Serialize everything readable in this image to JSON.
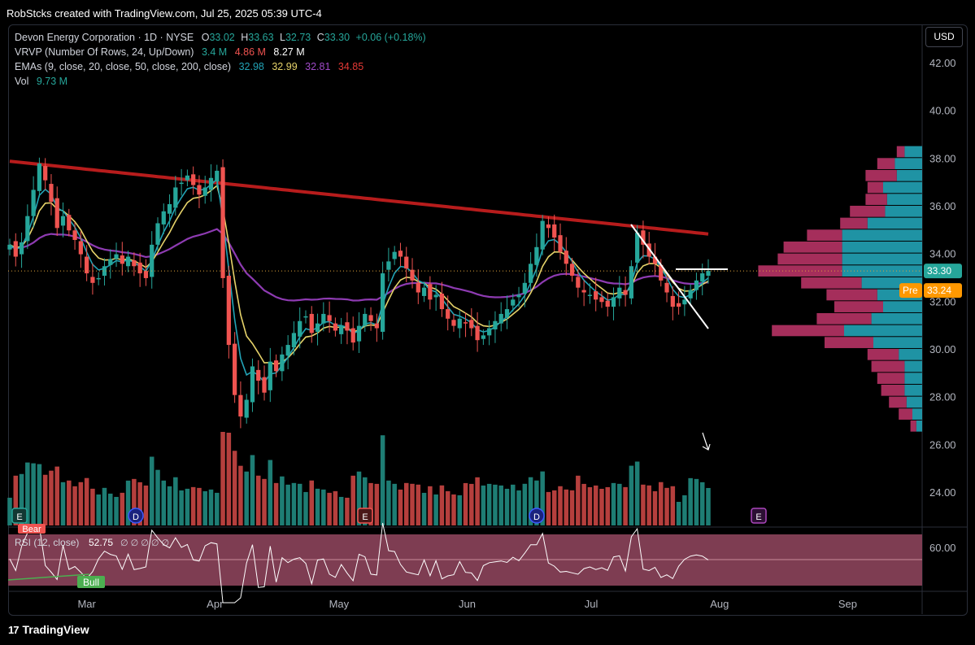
{
  "header": {
    "caption": "RobStcks created with TradingView.com, Jul 25, 2025 05:39 UTC-4"
  },
  "legend": {
    "symbol": "Devon Energy Corporation · 1D · NYSE",
    "open_label": "O",
    "open": "33.02",
    "high_label": "H",
    "high": "33.63",
    "low_label": "L",
    "low": "32.73",
    "close_label": "C",
    "close": "33.30",
    "change": "+0.06 (+0.18%)",
    "vrvp_label": "VRVP (Number Of Rows, 24, Up/Down)",
    "vrvp_up": "3.4 M",
    "vrvp_down": "4.86 M",
    "vrvp_total": "8.27 M",
    "ema_label": "EMAs (9, close, 20, close, 50, close, 200, close)",
    "ema9": "32.98",
    "ema20": "32.99",
    "ema50": "32.81",
    "ema200": "34.85",
    "vol_label": "Vol",
    "vol": "9.73 M"
  },
  "currency_button": "USD",
  "price_tags": {
    "last": "33.30",
    "pre_label": "Pre",
    "pre": "33.24"
  },
  "rsi": {
    "label": "RSI (12, close)",
    "value": "52.75",
    "extra": "∅ ∅ ∅ ∅ ∅",
    "axis_label": "60.00",
    "bear_label": "Bear",
    "bull_label": "Bull"
  },
  "event_markers": [
    "E",
    "D",
    "E",
    "D",
    "E"
  ],
  "footer": {
    "brand": "TradingView",
    "logo": "17"
  },
  "colors": {
    "up": "#26a69a",
    "down": "#ef5350",
    "ema9": "#22a3b6",
    "ema20": "#e6d36a",
    "ema50": "#8e3bb2",
    "ema200": "#b71c1c",
    "rsi_bg": "#7e3d52"
  },
  "chart_data": {
    "type": "candlestick",
    "y_axis_ticks": [
      "42.00",
      "40.00",
      "38.00",
      "36.00",
      "34.00",
      "32.00",
      "30.00",
      "28.00",
      "26.00",
      "24.00"
    ],
    "ylim": [
      22.6,
      43.6
    ],
    "x_axis_labels": [
      "Mar",
      "Apr",
      "May",
      "Jun",
      "Jul",
      "Aug",
      "Sep"
    ],
    "x_dates": [
      "2025-03-01",
      "2025-04-01",
      "2025-05-01",
      "2025-06-01",
      "2025-07-01",
      "2025-08-01",
      "2025-09-01"
    ],
    "closes": [
      34.4,
      33.9,
      34.5,
      35.6,
      36.7,
      37.8,
      37.1,
      36.2,
      35.1,
      35.6,
      35.0,
      34.6,
      34.0,
      33.2,
      32.8,
      33.0,
      33.5,
      33.8,
      34.0,
      33.6,
      33.9,
      33.5,
      33.2,
      33.0,
      34.4,
      35.3,
      35.8,
      36.1,
      36.8,
      37.0,
      37.3,
      36.9,
      36.5,
      36.8,
      37.2,
      37.5,
      33.0,
      30.2,
      28.1,
      27.2,
      27.9,
      29.3,
      28.7,
      28.2,
      29.5,
      29.1,
      29.8,
      30.2,
      30.7,
      31.2,
      31.4,
      30.7,
      31.1,
      31.5,
      31.2,
      30.8,
      31.0,
      30.8,
      30.3,
      31.0,
      31.5,
      31.2,
      30.9,
      33.2,
      33.7,
      34.1,
      33.9,
      33.4,
      32.9,
      32.4,
      32.6,
      32.1,
      32.3,
      31.7,
      31.3,
      31.0,
      31.3,
      31.1,
      30.9,
      30.4,
      30.6,
      30.9,
      31.2,
      31.5,
      31.7,
      32.1,
      32.3,
      32.8,
      33.6,
      34.3,
      35.4,
      35.1,
      34.7,
      34.1,
      33.6,
      33.1,
      32.6,
      32.4,
      32.3,
      32.1,
      32.0,
      31.8,
      32.2,
      32.6,
      32.3,
      33.5,
      34.9,
      34.4,
      33.9,
      33.6,
      32.9,
      32.4,
      31.8,
      31.8,
      32.1,
      32.5,
      32.9,
      33.2,
      33.3
    ],
    "closes_note_units": "USD",
    "series": [
      {
        "name": "EMA 9",
        "last": 32.98
      },
      {
        "name": "EMA 20",
        "last": 32.99
      },
      {
        "name": "EMA 50",
        "last": 32.81
      },
      {
        "name": "EMA 200",
        "last": 34.85
      }
    ],
    "volume_profile_rows": [
      {
        "price": 38.3,
        "up": 0.9,
        "down": 0.4
      },
      {
        "price": 37.8,
        "up": 1.4,
        "down": 0.9
      },
      {
        "price": 37.3,
        "up": 1.3,
        "down": 1.6
      },
      {
        "price": 36.8,
        "up": 2.0,
        "down": 0.8
      },
      {
        "price": 36.3,
        "up": 1.8,
        "down": 1.1
      },
      {
        "price": 35.8,
        "up": 1.9,
        "down": 1.8
      },
      {
        "price": 35.3,
        "up": 2.8,
        "down": 1.4
      },
      {
        "price": 34.8,
        "up": 4.1,
        "down": 1.8
      },
      {
        "price": 34.3,
        "up": 4.1,
        "down": 3.0
      },
      {
        "price": 33.8,
        "up": 4.1,
        "down": 3.3
      },
      {
        "price": 33.3,
        "up": 4.1,
        "down": 4.3
      },
      {
        "price": 32.8,
        "up": 3.1,
        "down": 3.1
      },
      {
        "price": 32.3,
        "up": 2.3,
        "down": 2.6
      },
      {
        "price": 31.8,
        "up": 2.0,
        "down": 2.5
      },
      {
        "price": 31.3,
        "up": 2.6,
        "down": 2.8
      },
      {
        "price": 30.8,
        "up": 4.0,
        "down": 3.7
      },
      {
        "price": 30.3,
        "up": 2.5,
        "down": 2.5
      },
      {
        "price": 29.8,
        "up": 1.2,
        "down": 1.6
      },
      {
        "price": 29.3,
        "up": 0.9,
        "down": 1.7
      },
      {
        "price": 28.8,
        "up": 0.9,
        "down": 1.4
      },
      {
        "price": 28.3,
        "up": 0.9,
        "down": 1.2
      },
      {
        "price": 27.8,
        "up": 0.8,
        "down": 0.9
      },
      {
        "price": 27.3,
        "up": 0.5,
        "down": 0.7
      },
      {
        "price": 26.8,
        "up": 0.3,
        "down": 0.3
      }
    ]
  }
}
